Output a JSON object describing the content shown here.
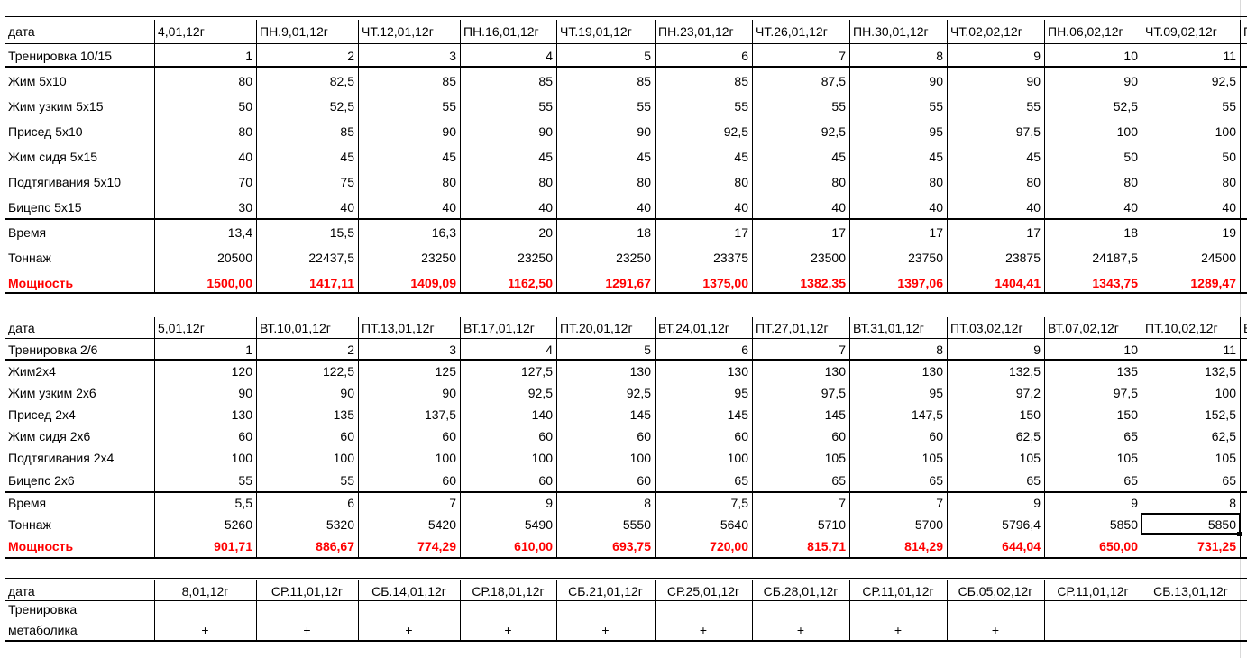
{
  "spreadsheet": {
    "blocks": [
      {
        "rows": [
          {
            "label": "дата",
            "cells": [
              "4,01,12г",
              "ПН.9,01,12г",
              "ЧТ.12,01,12г",
              "ПН.16,01,12г",
              "ЧТ.19,01,12г",
              "ПН.23,01,12г",
              "ЧТ.26,01,12г",
              "ПН.30,01,12г",
              "ЧТ.02,02,12г",
              "ПН.06,02,12г",
              "ЧТ.09,02,12г",
              "П"
            ]
          },
          {
            "label": "Тренировка 10/15",
            "cells": [
              "1",
              "2",
              "3",
              "4",
              "5",
              "6",
              "7",
              "8",
              "9",
              "10",
              "11"
            ]
          },
          {
            "label": "Жим 5х10",
            "cells": [
              "80",
              "82,5",
              "85",
              "85",
              "85",
              "85",
              "87,5",
              "90",
              "90",
              "90",
              "92,5"
            ]
          },
          {
            "label": "Жим узким 5х15",
            "cells": [
              "50",
              "52,5",
              "55",
              "55",
              "55",
              "55",
              "55",
              "55",
              "55",
              "52,5",
              "55"
            ]
          },
          {
            "label": "Присед 5х10",
            "cells": [
              "80",
              "85",
              "90",
              "90",
              "90",
              "92,5",
              "92,5",
              "95",
              "97,5",
              "100",
              "100"
            ]
          },
          {
            "label": "Жим сидя 5х15",
            "cells": [
              "40",
              "45",
              "45",
              "45",
              "45",
              "45",
              "45",
              "45",
              "45",
              "50",
              "50"
            ]
          },
          {
            "label": "Подтягивания 5х10",
            "cells": [
              "70",
              "75",
              "80",
              "80",
              "80",
              "80",
              "80",
              "80",
              "80",
              "80",
              "80"
            ]
          },
          {
            "label": "Бицепс 5х15",
            "cells": [
              "30",
              "40",
              "40",
              "40",
              "40",
              "40",
              "40",
              "40",
              "40",
              "40",
              "40"
            ]
          },
          {
            "label": "Время",
            "cells": [
              "13,4",
              "15,5",
              "16,3",
              "20",
              "18",
              "17",
              "17",
              "17",
              "17",
              "18",
              "19"
            ]
          },
          {
            "label": "Тоннаж",
            "cells": [
              "20500",
              "22437,5",
              "23250",
              "23250",
              "23250",
              "23375",
              "23500",
              "23750",
              "23875",
              "24187,5",
              "24500"
            ]
          },
          {
            "label": "Мощность",
            "cells": [
              "1500,00",
              "1417,11",
              "1409,09",
              "1162,50",
              "1291,67",
              "1375,00",
              "1382,35",
              "1397,06",
              "1404,41",
              "1343,75",
              "1289,47"
            ]
          }
        ]
      },
      {
        "rows": [
          {
            "label": "дата",
            "cells": [
              "5,01,12г",
              "ВТ.10,01,12г",
              "ПТ.13,01,12г",
              "ВТ.17,01,12г",
              "ПТ.20,01,12г",
              "ВТ.24,01,12г",
              "ПТ.27,01,12г",
              "ВТ.31,01,12г",
              "ПТ.03,02,12г",
              "ВТ.07,02,12г",
              "ПТ.10,02,12г",
              "В"
            ]
          },
          {
            "label": "Тренировка 2/6",
            "cells": [
              "1",
              "2",
              "3",
              "4",
              "5",
              "6",
              "7",
              "8",
              "9",
              "10",
              "11"
            ]
          },
          {
            "label": "Жим2х4",
            "cells": [
              "120",
              "122,5",
              "125",
              "127,5",
              "130",
              "130",
              "130",
              "130",
              "132,5",
              "135",
              "132,5"
            ]
          },
          {
            "label": "Жим узким 2х6",
            "cells": [
              "90",
              "90",
              "90",
              "92,5",
              "92,5",
              "95",
              "97,5",
              "95",
              "97,2",
              "97,5",
              "100"
            ]
          },
          {
            "label": "Присед 2х4",
            "cells": [
              "130",
              "135",
              "137,5",
              "140",
              "145",
              "145",
              "145",
              "147,5",
              "150",
              "150",
              "152,5"
            ]
          },
          {
            "label": "Жим сидя 2х6",
            "cells": [
              "60",
              "60",
              "60",
              "60",
              "60",
              "60",
              "60",
              "60",
              "62,5",
              "65",
              "62,5"
            ]
          },
          {
            "label": "Подтягивания 2х4",
            "cells": [
              "100",
              "100",
              "100",
              "100",
              "100",
              "100",
              "105",
              "105",
              "105",
              "105",
              "105"
            ]
          },
          {
            "label": "Бицепс 2х6",
            "cells": [
              "55",
              "55",
              "60",
              "60",
              "60",
              "65",
              "65",
              "65",
              "65",
              "65",
              "65"
            ]
          },
          {
            "label": "Время",
            "cells": [
              "5,5",
              "6",
              "7",
              "9",
              "8",
              "7,5",
              "7",
              "7",
              "9",
              "9",
              "8"
            ]
          },
          {
            "label": "Тоннаж",
            "cells": [
              "5260",
              "5320",
              "5420",
              "5490",
              "5550",
              "5640",
              "5710",
              "5700",
              "5796,4",
              "5850",
              "5850"
            ]
          },
          {
            "label": "Мощность",
            "cells": [
              "901,71",
              "886,67",
              "774,29",
              "610,00",
              "693,75",
              "720,00",
              "815,71",
              "814,29",
              "644,04",
              "650,00",
              "731,25"
            ]
          }
        ]
      },
      {
        "rows": [
          {
            "label": "дата",
            "cells": [
              "8,01,12г",
              "СР.11,01,12г",
              "СБ.14,01,12г",
              "СР.18,01,12г",
              "СБ.21,01,12г",
              "СР.25,01,12г",
              "СБ.28,01,12г",
              "СР.11,01,12г",
              "СБ.05,02,12г",
              "СР.11,01,12г",
              "СБ.13,01,12г"
            ]
          },
          {
            "label_line1": "Тренировка",
            "label_line2": "метаболика",
            "cells": [
              "+",
              "+",
              "+",
              "+",
              "+",
              "+",
              "+",
              "+",
              "+",
              "",
              ""
            ]
          }
        ]
      }
    ],
    "selected_cell": {
      "block": 2,
      "row": "Тоннаж",
      "column_index": 11,
      "value": "5850"
    },
    "colors": {
      "text": "#000000",
      "accent_red": "#ff0000",
      "gridline": "#d9d9d9"
    }
  }
}
